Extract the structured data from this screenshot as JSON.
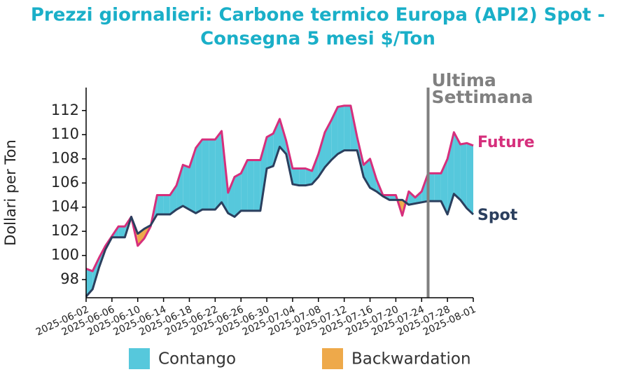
{
  "chart_data": {
    "type": "line",
    "title": "Prezzi giornalieri: Carbone termico Europa (API2) Spot -",
    "subtitle": "Consegna 5 mesi $/Ton",
    "ylabel": "Dollari per Ton",
    "x": [
      "2025-06-02",
      "2025-06-03",
      "2025-06-04",
      "2025-06-05",
      "2025-06-06",
      "2025-06-07",
      "2025-06-08",
      "2025-06-09",
      "2025-06-10",
      "2025-06-11",
      "2025-06-12",
      "2025-06-13",
      "2025-06-14",
      "2025-06-15",
      "2025-06-16",
      "2025-06-17",
      "2025-06-18",
      "2025-06-19",
      "2025-06-20",
      "2025-06-21",
      "2025-06-22",
      "2025-06-23",
      "2025-06-24",
      "2025-06-25",
      "2025-06-26",
      "2025-06-27",
      "2025-06-28",
      "2025-06-29",
      "2025-06-30",
      "2025-07-01",
      "2025-07-02",
      "2025-07-03",
      "2025-07-04",
      "2025-07-05",
      "2025-07-06",
      "2025-07-07",
      "2025-07-08",
      "2025-07-09",
      "2025-07-10",
      "2025-07-11",
      "2025-07-12",
      "2025-07-13",
      "2025-07-14",
      "2025-07-15",
      "2025-07-16",
      "2025-07-17",
      "2025-07-18",
      "2025-07-19",
      "2025-07-20",
      "2025-07-21",
      "2025-07-22",
      "2025-07-23",
      "2025-07-24",
      "2025-07-25",
      "2025-07-26",
      "2025-07-27",
      "2025-07-28",
      "2025-07-29",
      "2025-07-30",
      "2025-07-31",
      "2025-08-01"
    ],
    "series": [
      {
        "name": "Future",
        "color": "#d62f7c",
        "values": [
          98.9,
          98.7,
          99.8,
          100.8,
          101.6,
          102.4,
          102.4,
          103.2,
          100.8,
          101.4,
          102.4,
          105.0,
          105.0,
          105.0,
          105.8,
          107.5,
          107.3,
          108.9,
          109.6,
          109.6,
          109.6,
          110.3,
          105.2,
          106.5,
          106.8,
          107.9,
          107.9,
          107.9,
          109.8,
          110.1,
          111.3,
          109.5,
          107.2,
          107.2,
          107.2,
          107.0,
          108.4,
          110.2,
          111.2,
          112.3,
          112.4,
          112.4,
          109.8,
          107.5,
          108.0,
          106.3,
          105.0,
          105.0,
          105.0,
          103.3,
          105.3,
          104.8,
          105.3,
          106.8,
          106.8,
          106.8,
          108.0,
          110.2,
          109.2,
          109.3,
          109.1
        ]
      },
      {
        "name": "Spot",
        "color": "#2b3f5e",
        "values": [
          96.6,
          97.2,
          99.0,
          100.5,
          101.5,
          101.5,
          101.5,
          103.2,
          101.8,
          102.2,
          102.5,
          103.4,
          103.4,
          103.4,
          103.8,
          104.1,
          103.8,
          103.5,
          103.8,
          103.8,
          103.8,
          104.4,
          103.5,
          103.2,
          103.7,
          103.7,
          103.7,
          103.7,
          107.2,
          107.4,
          109.0,
          108.4,
          105.9,
          105.8,
          105.8,
          105.9,
          106.5,
          107.3,
          107.9,
          108.4,
          108.7,
          108.7,
          108.7,
          106.5,
          105.6,
          105.3,
          104.9,
          104.6,
          104.6,
          104.6,
          104.2,
          104.3,
          104.4,
          104.5,
          104.5,
          104.5,
          103.4,
          105.1,
          104.6,
          103.9,
          103.4
        ]
      }
    ],
    "fills": [
      {
        "name": "Contango",
        "color": "#56c8dc"
      },
      {
        "name": "Backwardation",
        "color": "#eea94a"
      }
    ],
    "xlim": [
      "2025-06-02",
      "2025-08-01"
    ],
    "xticks": [
      "2025-06-02",
      "2025-06-06",
      "2025-06-10",
      "2025-06-14",
      "2025-06-18",
      "2025-06-22",
      "2025-06-26",
      "2025-06-30",
      "2025-07-04",
      "2025-07-08",
      "2025-07-12",
      "2025-07-16",
      "2025-07-20",
      "2025-07-24",
      "2025-07-28",
      "2025-08-01"
    ],
    "ylim": [
      96.5,
      113.9
    ],
    "yticks": [
      98,
      100,
      102,
      104,
      106,
      108,
      110,
      112
    ],
    "annotation": {
      "x": "2025-07-25",
      "lines": [
        "Ultima",
        "Settimana"
      ],
      "color": "#808080"
    },
    "legend": "bottom"
  }
}
